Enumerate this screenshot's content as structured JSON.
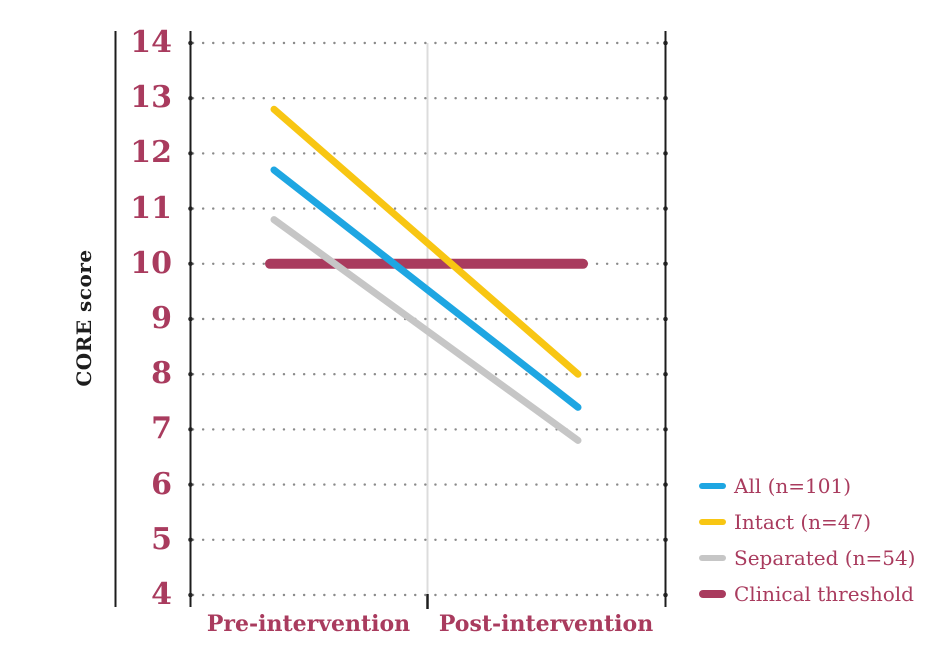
{
  "colors": {
    "background": "#ffffff",
    "accent_maroon": "#a93b5e",
    "axis_black": "#1d1d1d",
    "grid_dot_gray": "#8a8a8a",
    "center_divider_gray": "#dcdcdc",
    "series_blue": "#1ea6e2",
    "series_yellow": "#f8c613",
    "series_gray": "#c6c6c6"
  },
  "chart_data": {
    "type": "line",
    "title": "",
    "ylabel": "CORE score",
    "xlabel": "",
    "categories": [
      "Pre-intervention",
      "Post-intervention"
    ],
    "ylim": [
      4,
      14
    ],
    "yticks": [
      14,
      13,
      12,
      11,
      10,
      9,
      8,
      7,
      6,
      5,
      4
    ],
    "grid": "horizontal dotted gridline at every integer",
    "legend_position": "right, lower half",
    "series": [
      {
        "name": "All (n=101)",
        "values": [
          11.7,
          7.4
        ],
        "color": "#1ea6e2",
        "style": "line"
      },
      {
        "name": "Intact (n=47)",
        "values": [
          12.8,
          8.0
        ],
        "color": "#f8c613",
        "style": "line"
      },
      {
        "name": "Separated (n=54)",
        "values": [
          10.8,
          6.8
        ],
        "color": "#c6c6c6",
        "style": "line"
      },
      {
        "name": "Clinical threshold",
        "values": [
          10,
          10
        ],
        "color": "#a93b5e",
        "style": "threshold"
      }
    ]
  }
}
